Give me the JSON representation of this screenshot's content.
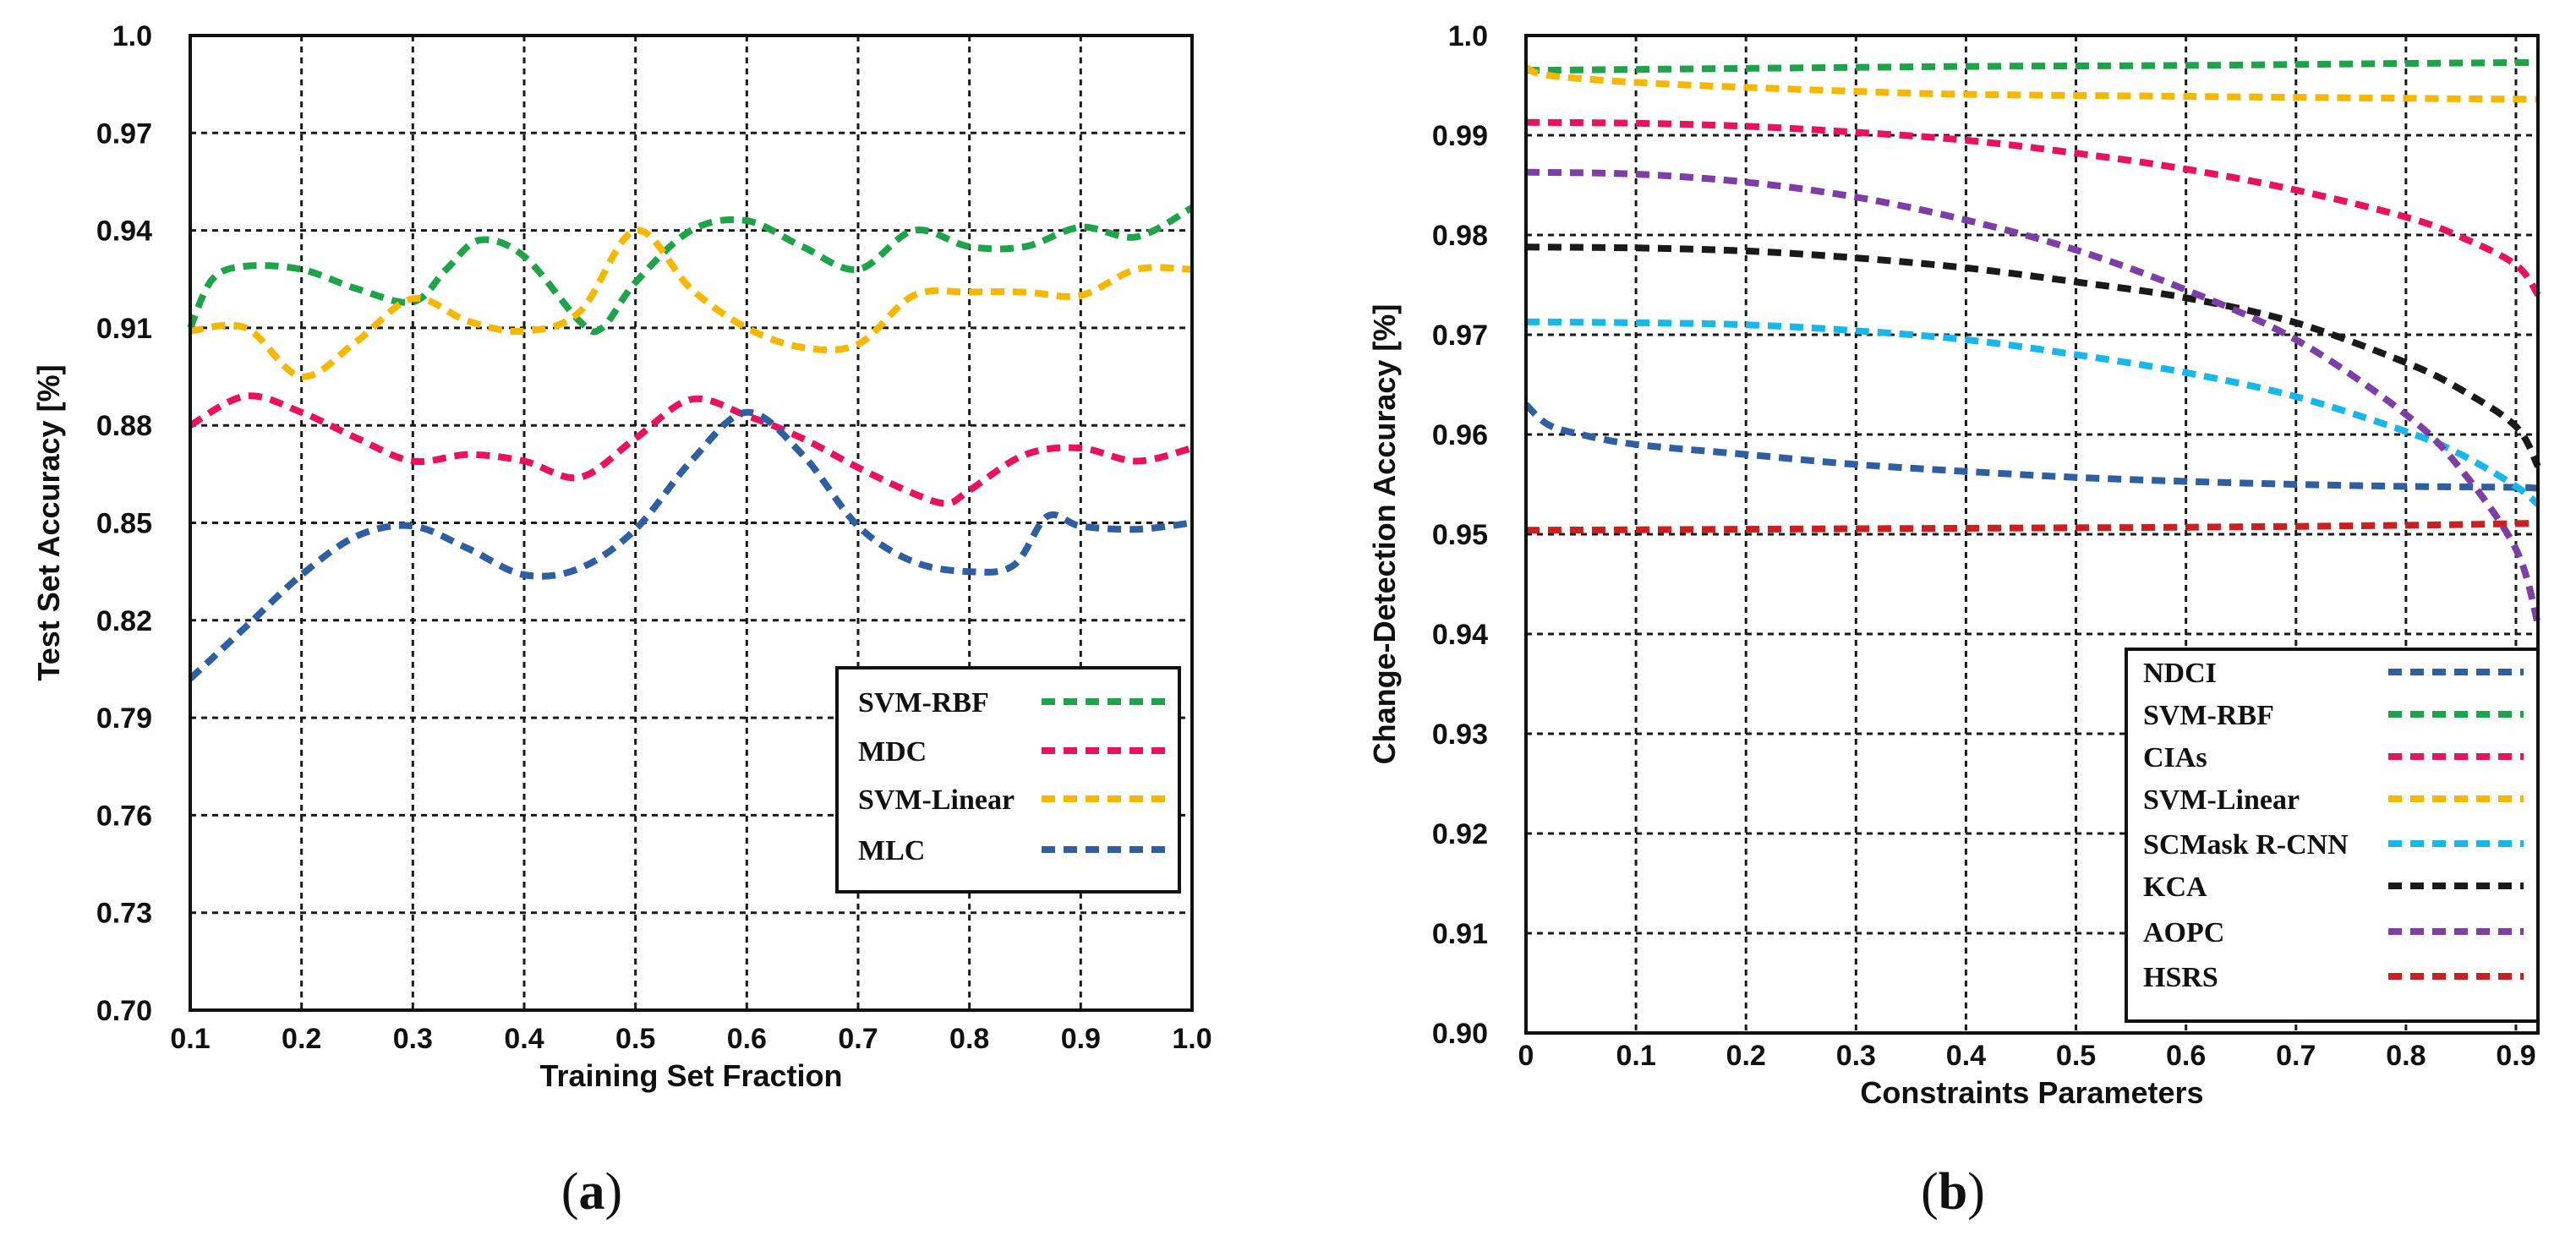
{
  "chart_data": [
    {
      "type": "line",
      "panel": "a",
      "xlabel": "Training Set Fraction",
      "ylabel": "Test Set Accuracy [%]",
      "xlim": [
        0.1,
        1.0
      ],
      "ylim": [
        0.7,
        1.0
      ],
      "x_ticks": [
        "0.1",
        "0.2",
        "0.3",
        "0.4",
        "0.5",
        "0.6",
        "0.7",
        "0.8",
        "0.9",
        "1.0"
      ],
      "y_ticks": [
        "0.70",
        "0.73",
        "0.76",
        "0.79",
        "0.82",
        "0.85",
        "0.88",
        "0.91",
        "0.94",
        "0.97",
        "1.0"
      ],
      "grid": true,
      "legend_position": "bottom-right",
      "series": [
        {
          "name": "SVM-RBF",
          "color": "#1fa34a",
          "x": [
            0.1,
            0.12,
            0.15,
            0.2,
            0.25,
            0.3,
            0.33,
            0.36,
            0.4,
            0.45,
            0.47,
            0.5,
            0.55,
            0.6,
            0.65,
            0.7,
            0.75,
            0.8,
            0.85,
            0.9,
            0.95,
            1.0
          ],
          "y": [
            0.91,
            0.925,
            0.929,
            0.928,
            0.922,
            0.918,
            0.928,
            0.937,
            0.932,
            0.912,
            0.91,
            0.924,
            0.94,
            0.943,
            0.935,
            0.928,
            0.94,
            0.935,
            0.935,
            0.941,
            0.938,
            0.947
          ]
        },
        {
          "name": "MDC",
          "color": "#e8135f",
          "x": [
            0.1,
            0.15,
            0.2,
            0.25,
            0.3,
            0.35,
            0.4,
            0.45,
            0.5,
            0.55,
            0.6,
            0.65,
            0.7,
            0.75,
            0.78,
            0.8,
            0.85,
            0.9,
            0.95,
            1.0
          ],
          "y": [
            0.88,
            0.889,
            0.884,
            0.876,
            0.869,
            0.871,
            0.869,
            0.864,
            0.876,
            0.888,
            0.883,
            0.876,
            0.867,
            0.859,
            0.856,
            0.86,
            0.871,
            0.873,
            0.869,
            0.873
          ]
        },
        {
          "name": "SVM-Linear",
          "color": "#f5b700",
          "x": [
            0.1,
            0.15,
            0.2,
            0.25,
            0.3,
            0.35,
            0.4,
            0.45,
            0.5,
            0.55,
            0.6,
            0.65,
            0.7,
            0.75,
            0.8,
            0.85,
            0.9,
            0.95,
            1.0
          ],
          "y": [
            0.909,
            0.91,
            0.895,
            0.906,
            0.919,
            0.912,
            0.909,
            0.915,
            0.94,
            0.922,
            0.91,
            0.904,
            0.905,
            0.92,
            0.921,
            0.921,
            0.92,
            0.928,
            0.928
          ]
        },
        {
          "name": "MLC",
          "color": "#2f5fa0",
          "x": [
            0.1,
            0.15,
            0.2,
            0.25,
            0.3,
            0.35,
            0.4,
            0.45,
            0.5,
            0.55,
            0.6,
            0.65,
            0.7,
            0.75,
            0.8,
            0.84,
            0.87,
            0.9,
            0.95,
            1.0
          ],
          "y": [
            0.802,
            0.818,
            0.834,
            0.846,
            0.849,
            0.842,
            0.834,
            0.836,
            0.848,
            0.869,
            0.884,
            0.871,
            0.849,
            0.838,
            0.835,
            0.837,
            0.852,
            0.849,
            0.848,
            0.85
          ]
        }
      ]
    },
    {
      "type": "line",
      "panel": "b",
      "xlabel": "Constraints Parameters",
      "ylabel": "Change-Detection Accuracy [%]",
      "xlim": [
        0,
        0.92
      ],
      "ylim": [
        0.9,
        1.0
      ],
      "x_ticks": [
        "0",
        "0.1",
        "0.2",
        "0.3",
        "0.4",
        "0.5",
        "0.6",
        "0.7",
        "0.8",
        "0.9"
      ],
      "y_ticks": [
        "0.90",
        "0.91",
        "0.92",
        "0.93",
        "0.94",
        "0.95",
        "0.96",
        "0.97",
        "0.98",
        "0.99",
        "1.0"
      ],
      "grid": true,
      "legend_position": "bottom-right",
      "series": [
        {
          "name": "NDCI",
          "color": "#2f5fa0",
          "x": [
            0,
            0.02,
            0.05,
            0.1,
            0.2,
            0.3,
            0.4,
            0.5,
            0.6,
            0.7,
            0.8,
            0.9,
            0.92
          ],
          "y": [
            0.963,
            0.961,
            0.96,
            0.959,
            0.958,
            0.957,
            0.9563,
            0.9557,
            0.9553,
            0.955,
            0.9548,
            0.9547,
            0.9546
          ]
        },
        {
          "name": "SVM-RBF",
          "color": "#1fa34a",
          "x": [
            0,
            0.2,
            0.4,
            0.6,
            0.8,
            0.92
          ],
          "y": [
            0.9965,
            0.9967,
            0.9969,
            0.997,
            0.9972,
            0.9973
          ]
        },
        {
          "name": "CIAs",
          "color": "#e8135f",
          "x": [
            0,
            0.1,
            0.2,
            0.3,
            0.4,
            0.5,
            0.6,
            0.7,
            0.8,
            0.85,
            0.9,
            0.92
          ],
          "y": [
            0.9913,
            0.9912,
            0.9909,
            0.9903,
            0.9895,
            0.9882,
            0.9866,
            0.9845,
            0.9818,
            0.9798,
            0.977,
            0.974
          ]
        },
        {
          "name": "SVM-Linear",
          "color": "#f5b700",
          "x": [
            0,
            0.02,
            0.1,
            0.2,
            0.3,
            0.4,
            0.6,
            0.8,
            0.92
          ],
          "y": [
            0.9968,
            0.996,
            0.9953,
            0.9948,
            0.9944,
            0.9941,
            0.9939,
            0.9937,
            0.9936
          ]
        },
        {
          "name": "SCMask R-CNN",
          "color": "#19b6ea",
          "x": [
            0,
            0.1,
            0.2,
            0.3,
            0.4,
            0.5,
            0.6,
            0.7,
            0.8,
            0.85,
            0.9,
            0.92
          ],
          "y": [
            0.9713,
            0.9712,
            0.971,
            0.9704,
            0.9695,
            0.968,
            0.9662,
            0.9638,
            0.9603,
            0.958,
            0.9548,
            0.953
          ]
        },
        {
          "name": "KCA",
          "color": "#1a1a1a",
          "x": [
            0,
            0.1,
            0.2,
            0.3,
            0.4,
            0.5,
            0.6,
            0.7,
            0.8,
            0.85,
            0.9,
            0.92
          ],
          "y": [
            0.9788,
            0.9787,
            0.9784,
            0.9777,
            0.9767,
            0.9753,
            0.9737,
            0.9712,
            0.9672,
            0.9645,
            0.9608,
            0.9568
          ]
        },
        {
          "name": "AOPC",
          "color": "#7d3fa6",
          "x": [
            0,
            0.1,
            0.2,
            0.3,
            0.4,
            0.5,
            0.6,
            0.7,
            0.8,
            0.85,
            0.9,
            0.92
          ],
          "y": [
            0.9863,
            0.9861,
            0.9853,
            0.9838,
            0.9815,
            0.9785,
            0.9745,
            0.9695,
            0.962,
            0.9565,
            0.9485,
            0.941
          ]
        },
        {
          "name": "HSRS",
          "color": "#cc1f1f",
          "x": [
            0,
            0.2,
            0.4,
            0.6,
            0.8,
            0.92
          ],
          "y": [
            0.9504,
            0.9505,
            0.9506,
            0.9507,
            0.9509,
            0.9511
          ]
        }
      ]
    }
  ],
  "panel_labels": {
    "a_open": "(",
    "a_letter": "a",
    "a_close": ")",
    "b_open": "(",
    "b_letter": "b",
    "b_close": ")"
  }
}
